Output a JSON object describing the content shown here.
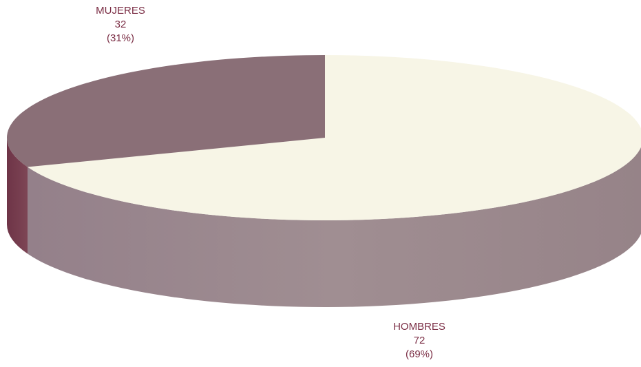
{
  "chart_data": {
    "type": "pie",
    "style": "3d",
    "title": "",
    "slices": [
      {
        "label": "HOMBRES",
        "value": 72,
        "percent_label": "(69%)",
        "top_color": "#f7f5e6",
        "side_color": "#9c878c"
      },
      {
        "label": "MUJERES",
        "value": 32,
        "percent_label": "(31%)",
        "top_color": "#8a6f77",
        "side_color": "#733b4d"
      }
    ],
    "label_color": "#7b2e45",
    "value_text": {
      "HOMBRES": "72",
      "MUJERES": "32"
    }
  }
}
